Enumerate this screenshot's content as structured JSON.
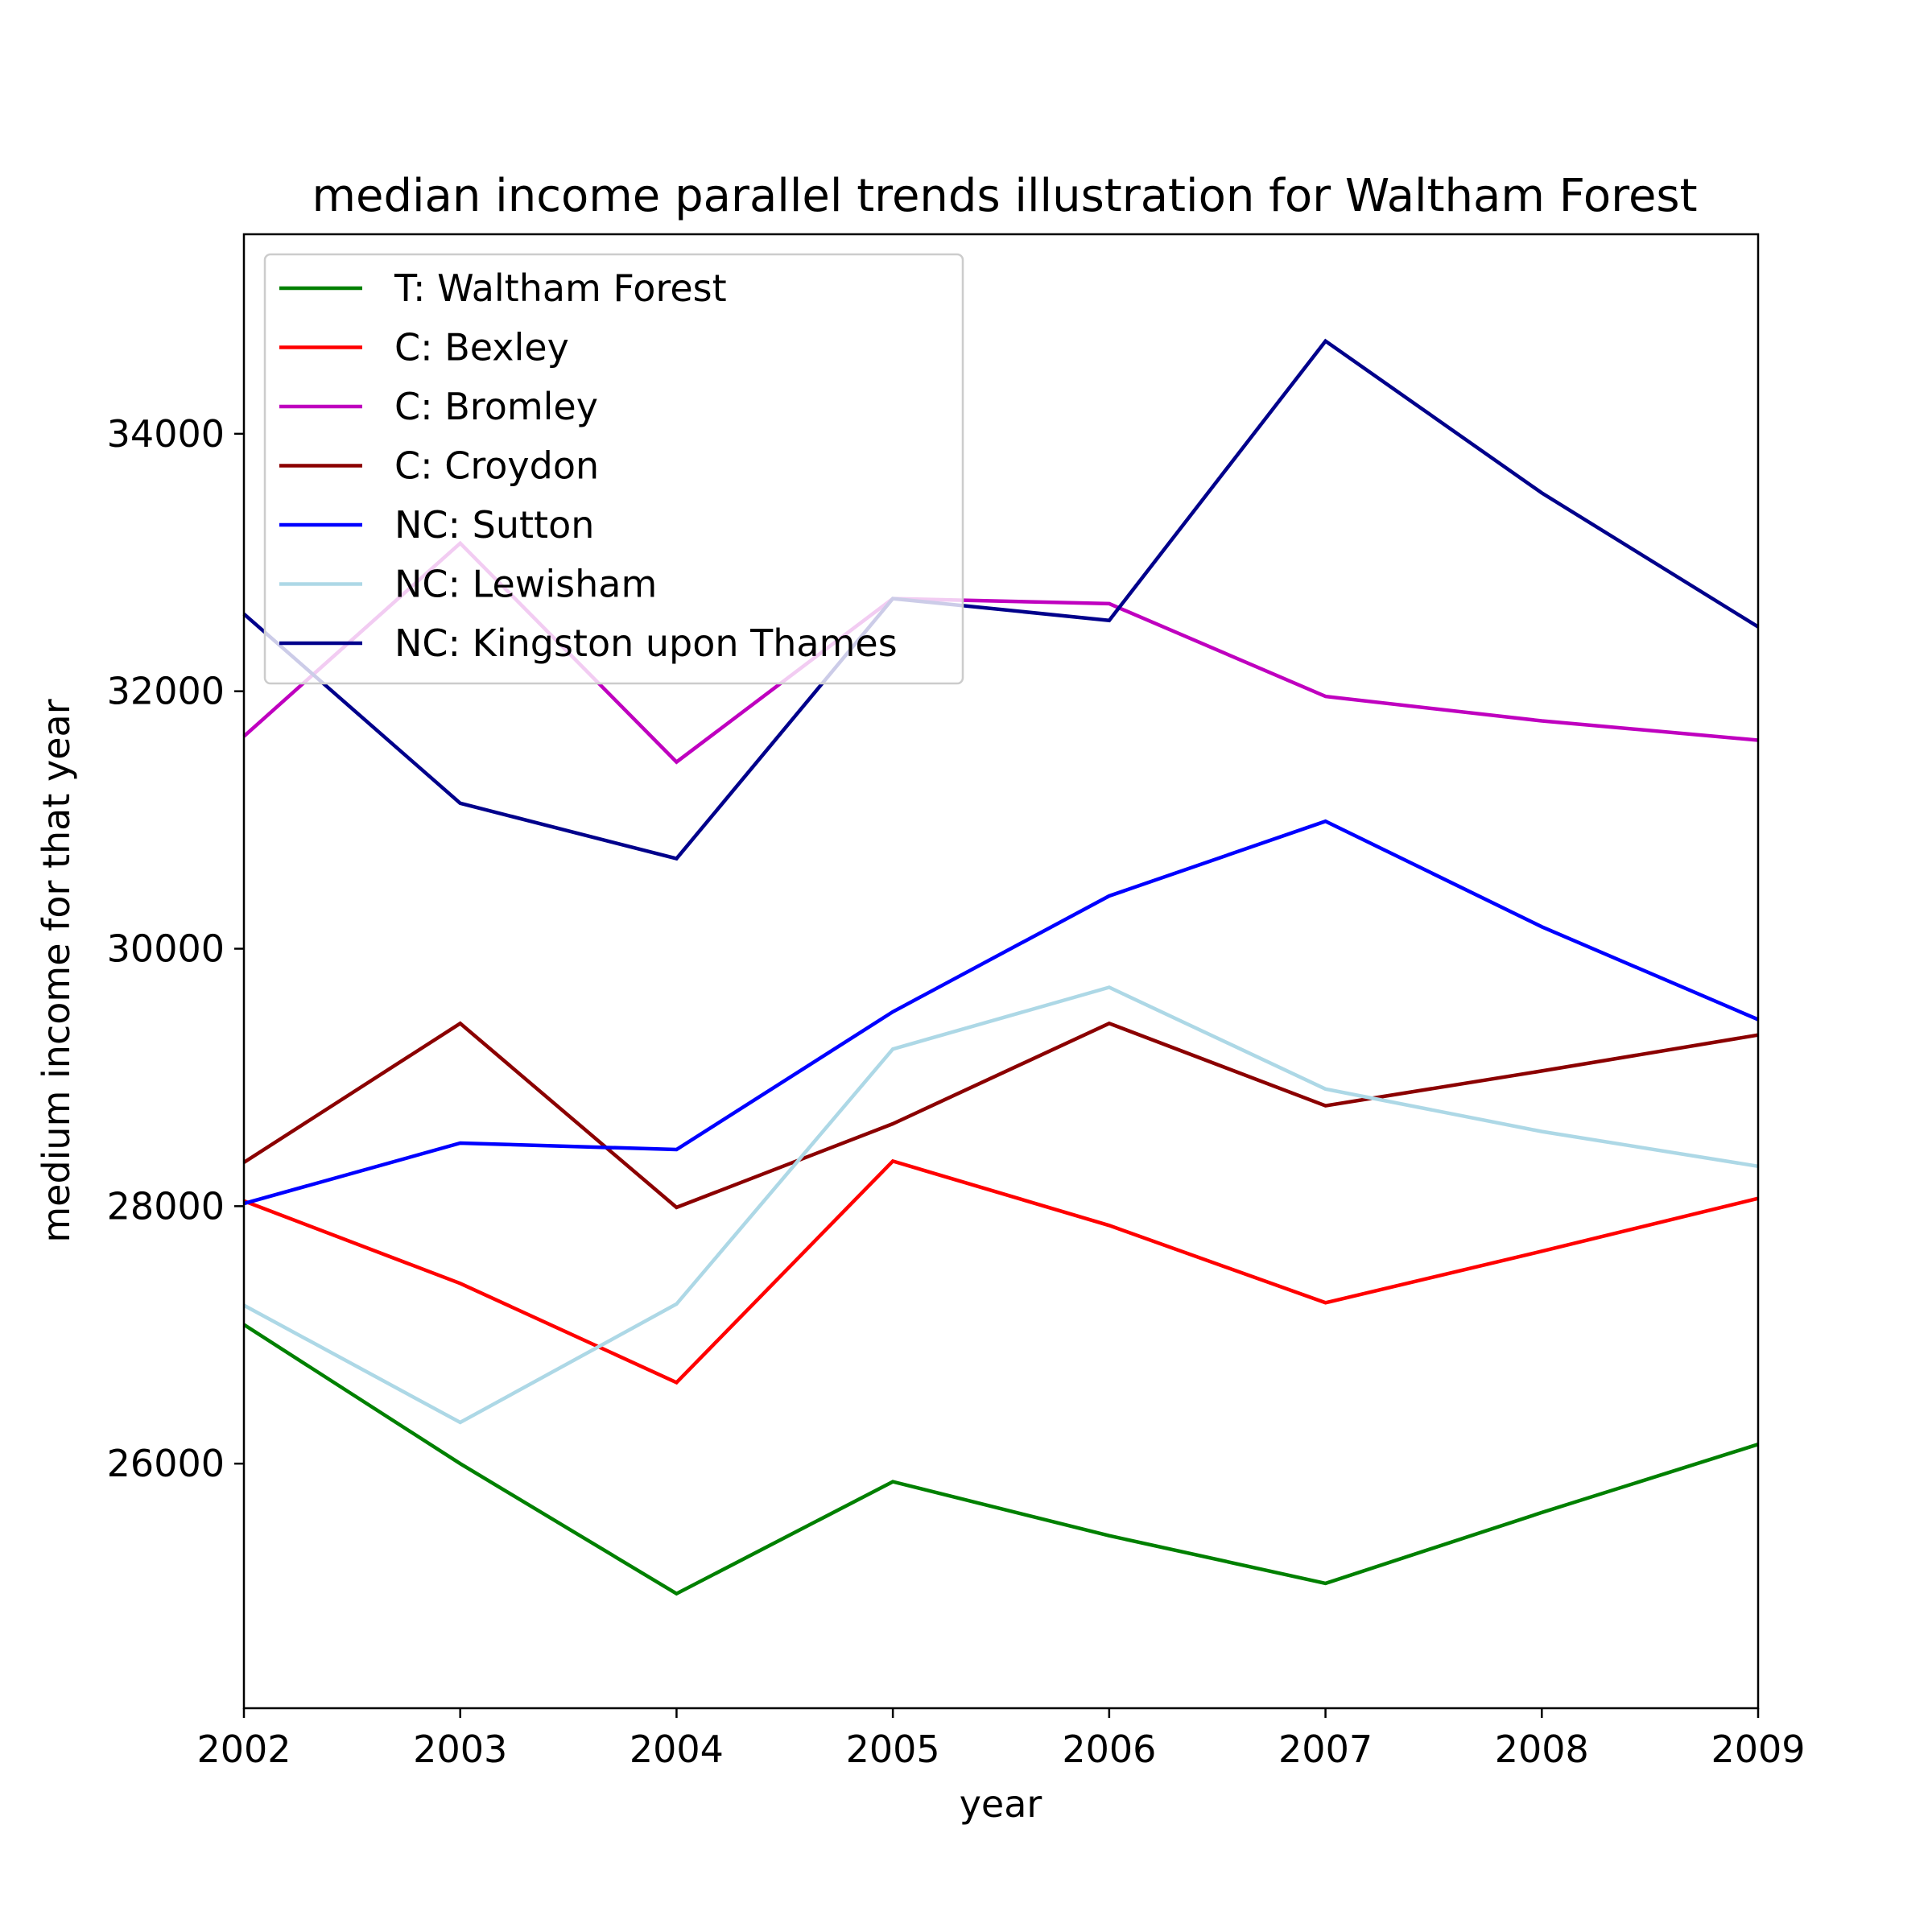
{
  "chart_data": {
    "type": "line",
    "title": "median income parallel trends illustration for Waltham Forest",
    "xlabel": "year",
    "ylabel": "medium income for that year",
    "x": [
      2002,
      2003,
      2004,
      2005,
      2006,
      2007,
      2008,
      2009
    ],
    "xlim": [
      2002,
      2009
    ],
    "ylim": [
      24100,
      35550
    ],
    "xticks": [
      2002,
      2003,
      2004,
      2005,
      2006,
      2007,
      2008,
      2009
    ],
    "yticks": [
      26000,
      28000,
      30000,
      32000,
      34000
    ],
    "grid": false,
    "legend_position": "upper-left",
    "series": [
      {
        "name": "T: Waltham Forest",
        "color": "#008000",
        "values": [
          27080,
          26000,
          24990,
          25860,
          25440,
          25070,
          25620,
          26150
        ]
      },
      {
        "name": "C: Bexley",
        "color": "#ff0000",
        "values": [
          28040,
          27400,
          26630,
          28350,
          27850,
          27250,
          27650,
          28060
        ]
      },
      {
        "name": "C: Bromley",
        "color": "#bf00bf",
        "values": [
          31650,
          33150,
          31450,
          32720,
          32680,
          31960,
          31770,
          31620
        ]
      },
      {
        "name": "C: Croydon",
        "color": "#8b0000",
        "values": [
          28340,
          29420,
          27990,
          28640,
          29420,
          28780,
          29050,
          29330
        ]
      },
      {
        "name": "NC: Sutton",
        "color": "#0000ff",
        "values": [
          28020,
          28490,
          28440,
          29510,
          30410,
          30990,
          30170,
          29450
        ]
      },
      {
        "name": "NC: Lewisham",
        "color": "#add8e6",
        "values": [
          27230,
          26320,
          27240,
          29220,
          29700,
          28910,
          28580,
          28310
        ]
      },
      {
        "name": "NC: Kingston upon Thames",
        "color": "#00008b",
        "values": [
          32600,
          31130,
          30700,
          32720,
          32550,
          34720,
          33540,
          32500
        ]
      }
    ]
  }
}
